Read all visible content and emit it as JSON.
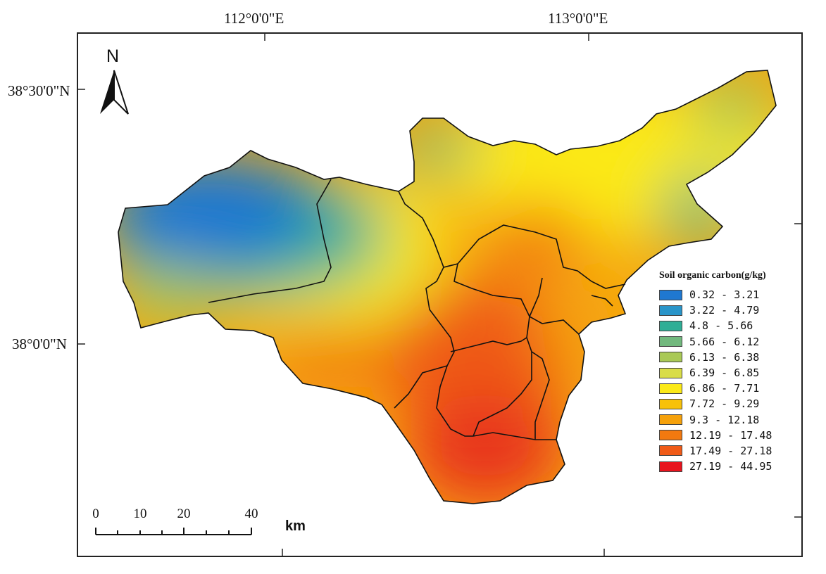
{
  "graticule": {
    "lon_labels": [
      "112°0'0\"E",
      "113°0'0\"E"
    ],
    "lat_labels": [
      "38°30'0\"N",
      "38°0'0\"N"
    ]
  },
  "north_arrow": {
    "label": "N",
    "icon": "north-arrow-icon"
  },
  "legend": {
    "title": "Soil organic carbon(g/kg)",
    "classes": [
      {
        "label": "0.32 - 3.21",
        "color": "#1f78d1"
      },
      {
        "label": "3.22 - 4.79",
        "color": "#2a95c9"
      },
      {
        "label": "4.8 - 5.66",
        "color": "#2fae96"
      },
      {
        "label": "5.66 - 6.12",
        "color": "#72b97e"
      },
      {
        "label": "6.13 - 6.38",
        "color": "#a9c956"
      },
      {
        "label": "6.39 - 6.85",
        "color": "#d9dd48"
      },
      {
        "label": "6.86 - 7.71",
        "color": "#fbe917"
      },
      {
        "label": "7.72 - 9.29",
        "color": "#f7c10a"
      },
      {
        "label": "9.3 - 12.18",
        "color": "#f5a10b"
      },
      {
        "label": "12.19 - 17.48",
        "color": "#f2790f"
      },
      {
        "label": "17.49 - 27.18",
        "color": "#ef5a17"
      },
      {
        "label": "27.19 - 44.95",
        "color": "#e8141e"
      }
    ]
  },
  "scale_bar": {
    "ticks": [
      "0",
      "10",
      "20",
      "40"
    ],
    "unit": "km"
  }
}
